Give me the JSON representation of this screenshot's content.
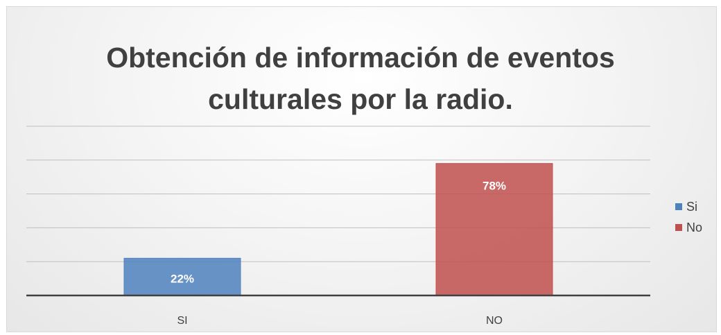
{
  "chart_data": {
    "type": "bar",
    "title_lines": [
      "Obtención de información de eventos",
      "culturales por la radio."
    ],
    "categories": [
      "SI",
      "NO"
    ],
    "values": [
      22,
      78
    ],
    "value_labels": [
      "22%",
      "78%"
    ],
    "ylim": [
      0,
      100
    ],
    "grid": true,
    "colors": [
      "#4f81bd",
      "#c0504d"
    ],
    "legend": {
      "position": "right",
      "entries": [
        {
          "label": "Si",
          "color": "#4f81bd"
        },
        {
          "label": "No",
          "color": "#c0504d"
        }
      ]
    }
  }
}
